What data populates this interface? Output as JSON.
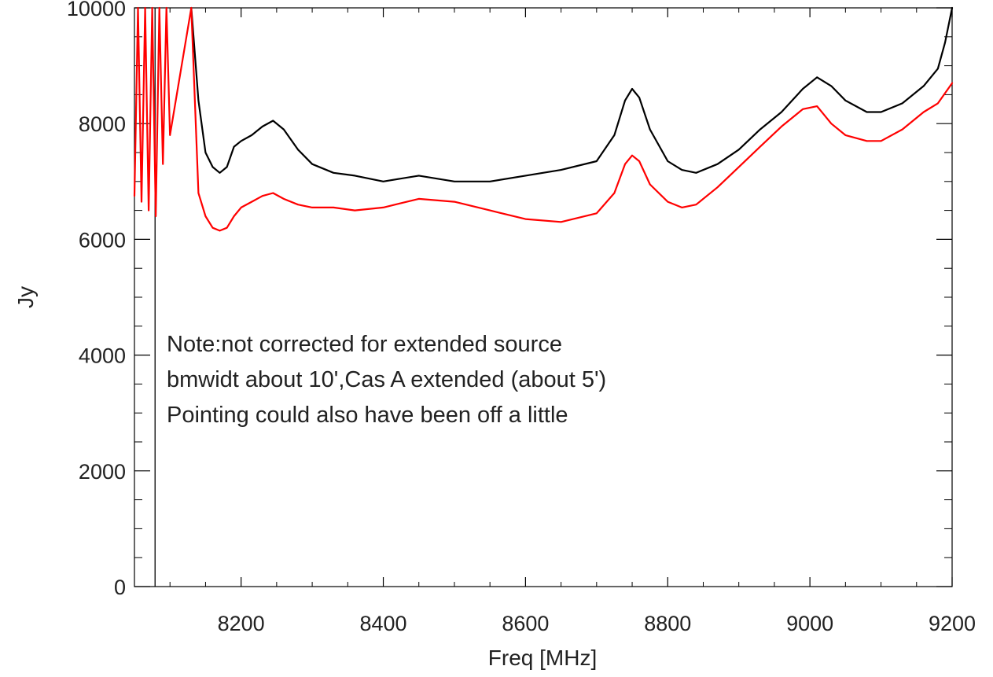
{
  "chart_data": {
    "type": "line",
    "title": "",
    "xlabel": "Freq [MHz]",
    "ylabel": "Jy",
    "xlim": [
      8050,
      9200
    ],
    "ylim": [
      0,
      10000
    ],
    "grid": false,
    "x_ticks": [
      8200,
      8400,
      8600,
      8800,
      9000,
      9200
    ],
    "x_tick_labels": [
      "8200",
      "8400",
      "8600",
      "8800",
      "9000",
      "9200"
    ],
    "y_ticks": [
      0,
      2000,
      4000,
      6000,
      8000,
      10000
    ],
    "y_tick_labels": [
      "0",
      "2000",
      "4000",
      "6000",
      "8000",
      "10000"
    ],
    "vertical_marker_x": 8079,
    "annotations": [
      "Note:not corrected for extended source",
      "bmwidt about 10',Cas A extended (about 5')",
      "Pointing could also have been off a little"
    ],
    "series": [
      {
        "color": "#000000",
        "x": [
          8130,
          8140,
          8150,
          8160,
          8170,
          8180,
          8190,
          8200,
          8215,
          8230,
          8245,
          8260,
          8280,
          8300,
          8330,
          8360,
          8400,
          8450,
          8500,
          8550,
          8600,
          8650,
          8700,
          8725,
          8740,
          8750,
          8760,
          8775,
          8800,
          8820,
          8840,
          8870,
          8900,
          8930,
          8960,
          8990,
          9010,
          9030,
          9050,
          9080,
          9100,
          9130,
          9160,
          9180,
          9190,
          9200
        ],
        "y": [
          10000,
          8400,
          7500,
          7250,
          7150,
          7250,
          7600,
          7700,
          7800,
          7950,
          8050,
          7900,
          7550,
          7300,
          7150,
          7100,
          7000,
          7100,
          7000,
          7000,
          7100,
          7200,
          7350,
          7800,
          8400,
          8600,
          8450,
          7900,
          7350,
          7200,
          7150,
          7300,
          7550,
          7900,
          8200,
          8600,
          8800,
          8650,
          8400,
          8200,
          8200,
          8350,
          8650,
          8950,
          9400,
          10000
        ]
      },
      {
        "color": "#ff0000",
        "x": [
          8050,
          8055,
          8060,
          8065,
          8070,
          8075,
          8080,
          8085,
          8090,
          8095,
          8100,
          8130,
          8140,
          8150,
          8160,
          8170,
          8180,
          8190,
          8200,
          8215,
          8230,
          8245,
          8260,
          8280,
          8300,
          8330,
          8360,
          8400,
          8450,
          8500,
          8550,
          8600,
          8650,
          8700,
          8725,
          8740,
          8750,
          8760,
          8775,
          8800,
          8820,
          8840,
          8870,
          8900,
          8930,
          8960,
          8990,
          9010,
          9030,
          9050,
          9080,
          9100,
          9130,
          9160,
          9180,
          9200
        ],
        "y": [
          6750,
          10000,
          6650,
          10000,
          6500,
          10000,
          6400,
          10000,
          7300,
          10000,
          7800,
          10000,
          6800,
          6400,
          6200,
          6150,
          6200,
          6400,
          6550,
          6650,
          6750,
          6800,
          6700,
          6600,
          6550,
          6550,
          6500,
          6550,
          6700,
          6650,
          6500,
          6350,
          6300,
          6450,
          6800,
          7300,
          7450,
          7350,
          6950,
          6650,
          6550,
          6600,
          6900,
          7250,
          7600,
          7950,
          8250,
          8300,
          8000,
          7800,
          7700,
          7700,
          7900,
          8200,
          8350,
          8700
        ]
      }
    ]
  }
}
